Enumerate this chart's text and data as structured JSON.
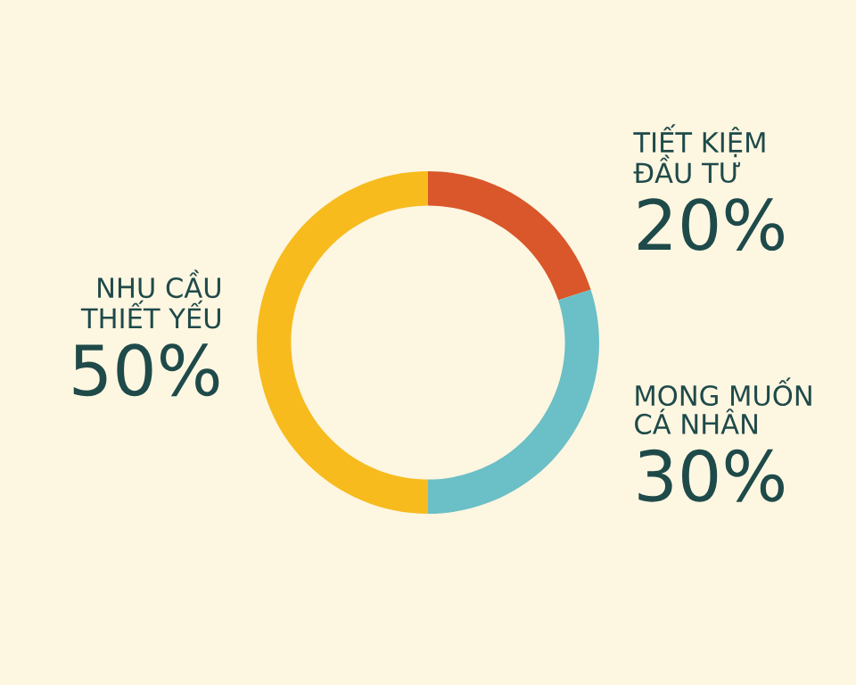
{
  "chart_data": {
    "type": "donut",
    "categories": [
      "TIẾT KIỆM\nĐẦU TƯ",
      "MONG MUỐN\nCÁ NHÂN",
      "NHU CẦU\nTHIẾT YẾU"
    ],
    "values": [
      20,
      30,
      50
    ],
    "colors": [
      "#d9572a",
      "#6bbfc6",
      "#f7bb1e"
    ],
    "value_labels": [
      "20%",
      "30%",
      "50%"
    ]
  }
}
